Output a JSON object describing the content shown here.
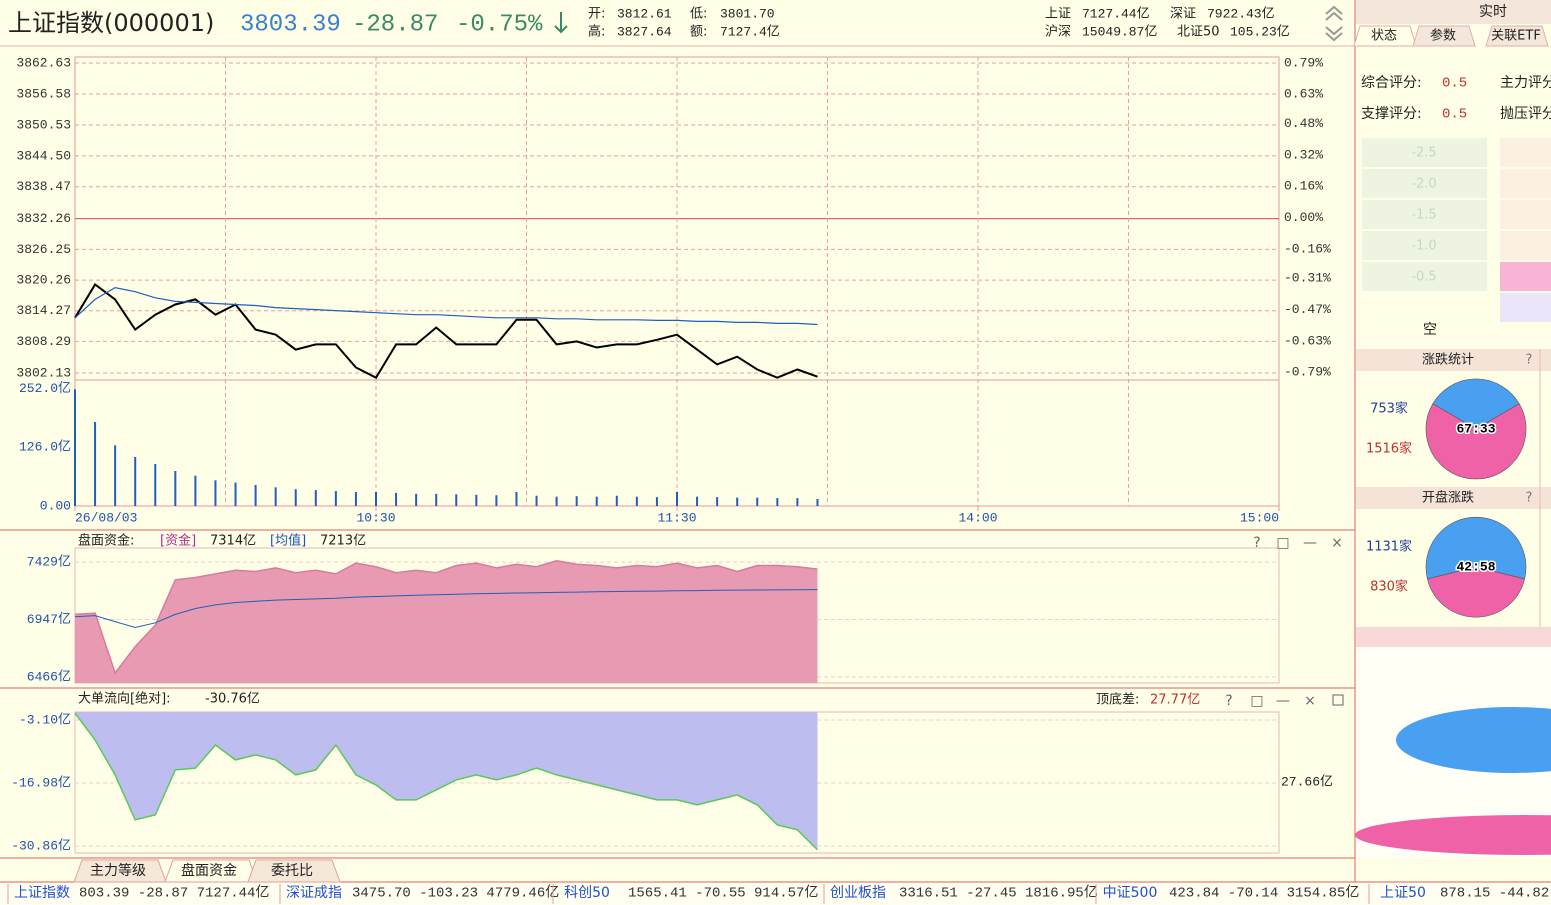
{
  "header": {
    "name": "上证指数(000001)",
    "price": "3803.39",
    "change": "-28.87",
    "pct": "-0.75%",
    "open_label": "开:",
    "open": "3812.61",
    "low_label": "低:",
    "low": "3801.70",
    "high_label": "高:",
    "high": "3827.64",
    "amount_label": "额:",
    "amount": "7127.4亿",
    "markets": [
      {
        "name": "上证",
        "value": "7127.44亿"
      },
      {
        "name": "深证",
        "value": "7922.43亿"
      },
      {
        "name": "沪深",
        "value": "15049.87亿"
      },
      {
        "name": "北证50",
        "value": "105.23亿"
      }
    ]
  },
  "chart_data": [
    {
      "type": "line",
      "x": [
        0,
        4,
        8,
        12,
        16,
        20,
        24,
        28,
        32,
        36,
        40,
        44,
        48,
        52,
        56,
        60,
        64,
        68,
        72,
        76,
        80,
        84,
        88,
        92,
        96,
        100,
        104,
        108,
        112,
        116,
        120,
        124,
        128,
        132,
        136,
        140,
        144,
        148
      ],
      "series": [
        {
          "color": "#000000",
          "values": [
            3812.9,
            3819.4,
            3816.5,
            3810.6,
            3813.5,
            3815.5,
            3816.5,
            3813.5,
            3815.5,
            3810.6,
            3809.6,
            3806.7,
            3807.7,
            3807.7,
            3803.2,
            3801.2,
            3807.7,
            3807.7,
            3811.0,
            3807.7,
            3807.7,
            3807.7,
            3812.5,
            3812.5,
            3807.7,
            3808.3,
            3807.1,
            3807.7,
            3807.7,
            3808.6,
            3809.6,
            3806.7,
            3803.8,
            3805.3,
            3802.8,
            3801.2,
            3802.8,
            3801.4
          ]
        },
        {
          "color": "#1f5fbf",
          "values": [
            3812.9,
            3816.5,
            3818.8,
            3818.0,
            3816.8,
            3816.1,
            3815.9,
            3815.7,
            3815.5,
            3815.3,
            3814.9,
            3814.7,
            3814.5,
            3814.3,
            3814.1,
            3813.9,
            3813.7,
            3813.5,
            3813.5,
            3813.3,
            3813.1,
            3812.9,
            3812.9,
            3812.9,
            3812.7,
            3812.7,
            3812.5,
            3812.5,
            3812.5,
            3812.4,
            3812.4,
            3812.2,
            3812.2,
            3812.0,
            3812.0,
            3811.8,
            3811.8,
            3811.6
          ]
        }
      ],
      "xlim": [
        0,
        240
      ],
      "xgrid": [
        30,
        60,
        90,
        120,
        150,
        180,
        210
      ],
      "ylim": [
        3800.76,
        3863.8
      ],
      "yticks": [
        3862.63,
        3856.58,
        3850.53,
        {
          "value": 3844.5,
          "label": "3844.50"
        },
        3838.47,
        3832.26,
        3826.25,
        3820.26,
        3814.27,
        3808.29,
        3802.13
      ],
      "baseline": 3832.26,
      "y2lim": [
        -0.83,
        0.82
      ],
      "y2ticks": [
        {
          "value": 0.79,
          "label": "0.79%"
        },
        {
          "value": 0.63,
          "label": "0.63%"
        },
        {
          "value": 0.48,
          "label": "0.48%"
        },
        {
          "value": 0.32,
          "label": "0.32%"
        },
        {
          "value": 0.16,
          "label": "0.16%"
        },
        {
          "value": 0,
          "label": "0.00%"
        },
        {
          "value": -0.16,
          "label": "-0.16%"
        },
        {
          "value": -0.31,
          "label": "-0.31%"
        },
        {
          "value": -0.47,
          "label": "-0.47%"
        },
        {
          "value": -0.63,
          "label": "-0.63%"
        },
        {
          "value": -0.79,
          "label": "-0.79%"
        }
      ],
      "grid": true
    },
    {
      "type": "bar",
      "x": [
        0,
        4,
        8,
        12,
        16,
        20,
        24,
        28,
        32,
        36,
        40,
        44,
        48,
        52,
        56,
        60,
        64,
        68,
        72,
        76,
        80,
        84,
        88,
        92,
        96,
        100,
        104,
        108,
        112,
        116,
        120,
        124,
        128,
        132,
        136,
        140,
        144,
        148
      ],
      "values": [
        250,
        180,
        130,
        105,
        90,
        75,
        65,
        55,
        50,
        45,
        40,
        36,
        34,
        32,
        30,
        30,
        28,
        26,
        26,
        25,
        24,
        23,
        30,
        22,
        20,
        21,
        20,
        22,
        20,
        19,
        30,
        20,
        19,
        18,
        18,
        17,
        17,
        15
      ],
      "color": "#1f5fbf",
      "xlim": [
        0,
        240
      ],
      "ylim": [
        0,
        265.7
      ],
      "yticks": [
        {
          "value": 252,
          "label": "252.0亿"
        },
        {
          "value": 126,
          "label": "126.0亿"
        },
        {
          "value": 0,
          "label": "0.00"
        }
      ],
      "xticks": [
        {
          "value": 0,
          "label": "26/08/03"
        },
        {
          "value": 60,
          "label": "10:30"
        },
        {
          "value": 120,
          "label": "11:30"
        },
        {
          "value": 180,
          "label": "14:00"
        },
        {
          "value": 240,
          "label": "15:00"
        }
      ],
      "grid": false
    },
    {
      "type": "area",
      "title": "盘面资金:",
      "x": [
        0,
        4,
        8,
        12,
        16,
        20,
        24,
        28,
        32,
        36,
        40,
        44,
        48,
        52,
        56,
        60,
        64,
        68,
        72,
        76,
        80,
        84,
        88,
        92,
        96,
        100,
        104,
        108,
        112,
        116,
        120,
        124,
        128,
        132,
        136,
        140,
        144,
        148
      ],
      "series": [
        {
          "name": "[资金]",
          "readout": "7314亿",
          "color": "#d77c9c",
          "fill": "#e89ab2",
          "values": [
            6990,
            7000,
            6500,
            6720,
            6900,
            7280,
            7300,
            7330,
            7360,
            7350,
            7380,
            7340,
            7360,
            7330,
            7420,
            7390,
            7340,
            7360,
            7340,
            7400,
            7420,
            7380,
            7410,
            7390,
            7440,
            7410,
            7400,
            7380,
            7400,
            7390,
            7420,
            7380,
            7400,
            7350,
            7400,
            7400,
            7390,
            7370
          ]
        },
        {
          "name": "[均值]",
          "readout": "7213亿",
          "color": "#1f5fbf",
          "values": [
            6970,
            6980,
            6930,
            6880,
            6920,
            6990,
            7040,
            7070,
            7090,
            7100,
            7110,
            7115,
            7120,
            7125,
            7135,
            7140,
            7145,
            7150,
            7155,
            7160,
            7163,
            7166,
            7170,
            7172,
            7175,
            7177,
            7180,
            7182,
            7184,
            7186,
            7188,
            7190,
            7192,
            7194,
            7195,
            7196,
            7197,
            7198
          ]
        }
      ],
      "fill_to": "bottom",
      "xlim": [
        0,
        240
      ],
      "ylim": [
        6415,
        7547
      ],
      "yticks": [
        {
          "value": 7429,
          "label": "7429亿"
        },
        {
          "value": 6947,
          "label": "6947亿"
        },
        {
          "value": 6466,
          "label": "6466亿"
        }
      ],
      "grid": true
    },
    {
      "type": "area",
      "title": "大单流向[绝对]:",
      "readout": "-30.76亿",
      "spread_label": "顶底差:",
      "spread": "27.77亿",
      "right_label": "27.66亿",
      "x": [
        0,
        4,
        8,
        12,
        16,
        20,
        24,
        28,
        32,
        36,
        40,
        44,
        48,
        52,
        56,
        60,
        64,
        68,
        72,
        76,
        80,
        84,
        88,
        92,
        96,
        100,
        104,
        108,
        112,
        116,
        120,
        124,
        128,
        132,
        136,
        140,
        144,
        148
      ],
      "series": [
        {
          "color": "#5ac85a",
          "fill": "#bdbdf0",
          "values": [
            -1.6,
            -7.5,
            -15.2,
            -25.1,
            -24.0,
            -14.1,
            -13.7,
            -8.6,
            -11.9,
            -10.8,
            -11.9,
            -15.2,
            -14.1,
            -8.6,
            -15.2,
            -17.4,
            -20.7,
            -20.7,
            -18.5,
            -16.3,
            -15.2,
            -16.3,
            -15.2,
            -13.7,
            -15.2,
            -16.3,
            -17.4,
            -18.5,
            -19.6,
            -20.7,
            -20.7,
            -21.8,
            -20.7,
            -19.6,
            -21.8,
            -26.2,
            -27.3,
            -31.7
          ]
        }
      ],
      "fill_to": "top",
      "xlim": [
        0,
        240
      ],
      "ylim": [
        -32.4,
        -1.34
      ],
      "yticks": [
        {
          "value": -3.1,
          "label": "-3.10亿"
        },
        {
          "value": -16.98,
          "label": "-16.98亿"
        },
        {
          "value": -30.86,
          "label": "-30.86亿"
        }
      ],
      "grid": true
    },
    {
      "type": "pie",
      "title": "涨跌统计",
      "values": [
        753,
        1516
      ],
      "value_labels": [
        "753家",
        "1516家"
      ],
      "colors": [
        "#4aa0f0",
        "#f062a8"
      ],
      "center_label": "67:33"
    },
    {
      "type": "pie",
      "title": "开盘涨跌",
      "values": [
        1131,
        830
      ],
      "value_labels": [
        "1131家",
        "830家"
      ],
      "colors": [
        "#4aa0f0",
        "#f062a8"
      ],
      "center_label": "42:58"
    }
  ],
  "controls": [
    "?",
    "□",
    "—",
    "×"
  ],
  "right_panel": {
    "title": "实时",
    "tabs": [
      "状态",
      "参数",
      "关联ETF"
    ],
    "scores": [
      {
        "label": "综合评分:",
        "value": "0.5",
        "other": "主力评分"
      },
      {
        "label": "支撑评分:",
        "value": "0.5",
        "other": "抛压评分"
      }
    ],
    "scale": [
      "-2.5",
      "-2.0",
      "-1.5",
      "-1.0",
      "-0.5"
    ],
    "scale_caption": "空"
  },
  "tabs": [
    "主力等级",
    "盘面资金",
    "委托比"
  ],
  "ticker": [
    {
      "name": "上证指数",
      "values": "803.39 -28.87 7127.44亿"
    },
    {
      "name": "深证成指",
      "values": "3475.70 -103.23 4779.46亿"
    },
    {
      "name": "科创50",
      "values": "1565.41 -70.55 914.57亿"
    },
    {
      "name": "创业板指",
      "values": "3316.51 -27.45 1816.95亿"
    },
    {
      "name": "中证500",
      "values": "423.84 -70.14 3154.85亿"
    },
    {
      "name": "上证50",
      "values": "878.15 -44.82"
    }
  ]
}
